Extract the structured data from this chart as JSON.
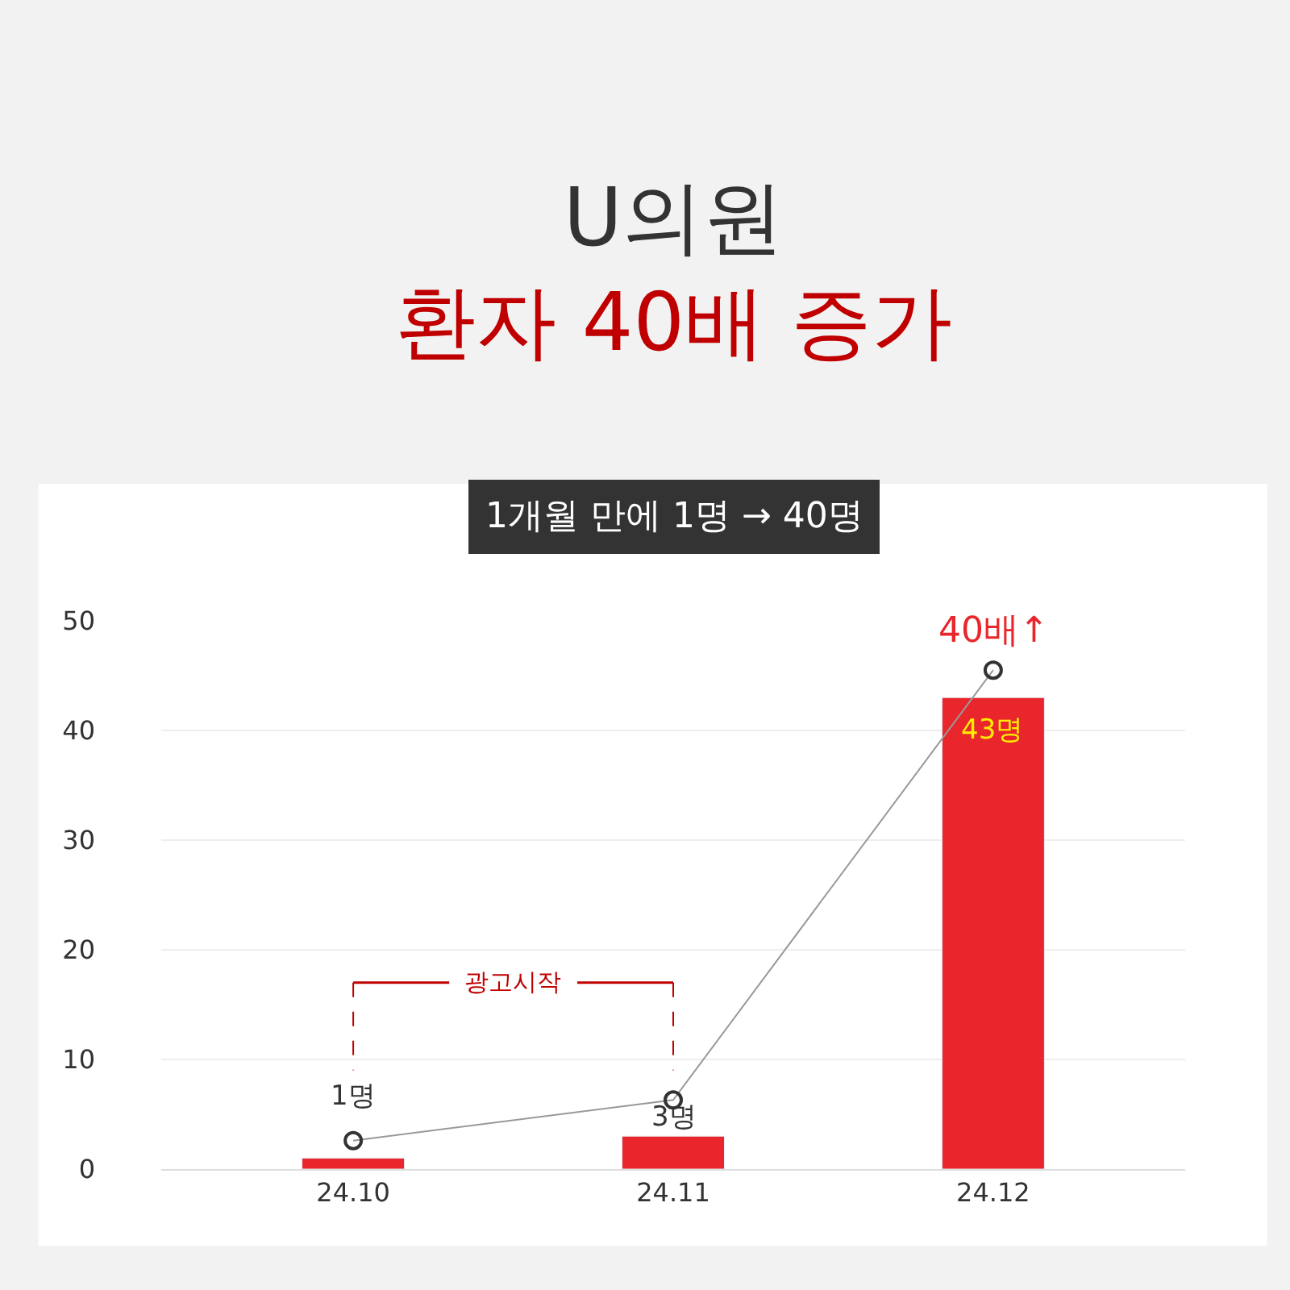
{
  "chart_data": {
    "type": "bar",
    "title": "U의원\n환자 40배 증가",
    "subtitle": "1개월 만에 1명 → 40명",
    "categories": [
      "24.10",
      "24.11",
      "24.12"
    ],
    "series": [
      {
        "color": "#e8262b",
        "values": [
          1,
          3,
          43
        ],
        "value_labels": [
          "1명",
          "3명",
          "43명"
        ]
      },
      {
        "type": "line",
        "color": "#999999",
        "values": [
          2.6,
          6.3,
          45.5
        ],
        "marker": "circle"
      }
    ],
    "annotations": [
      {
        "text": "40배↑",
        "x": "24.12",
        "y": 45.5
      },
      "광고시작"
    ],
    "ylim": [
      0,
      50
    ],
    "yticks": [
      0,
      10,
      20,
      30,
      40,
      50
    ],
    "grid": "y"
  }
}
